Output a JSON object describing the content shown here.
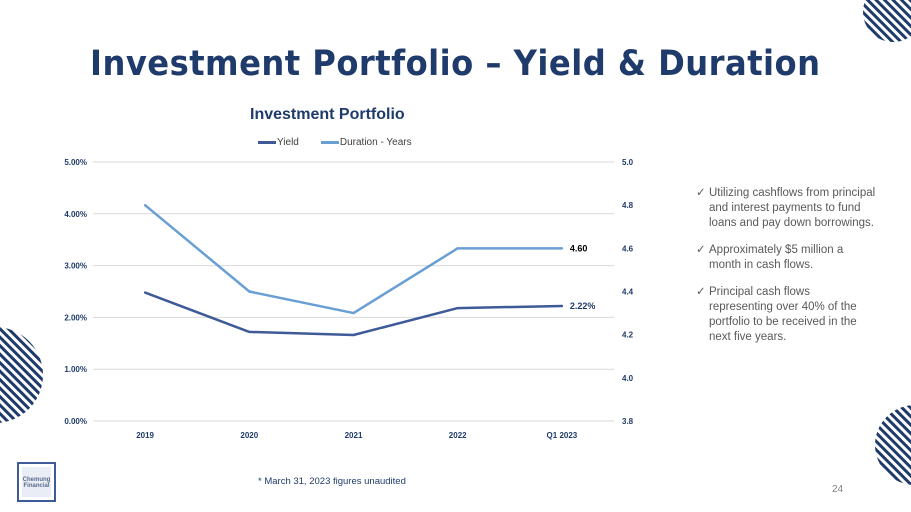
{
  "slide": {
    "title": "Investment Portfolio – Yield & Duration",
    "footnote": "* March 31, 2023  figures unaudited",
    "page_number": "24",
    "logo_text": "Chemung Financial Corporation",
    "bullets": [
      "Utilizing cashflows from principal and interest payments to fund loans and pay down borrowings.",
      "Approximately $5 million a month in cash flows.",
      "Principal cash flows representing over 40% of the portfolio to be received in the next five years."
    ],
    "bullet_icon": "checkmark-icon"
  },
  "chart_data": {
    "type": "line",
    "title": "Investment Portfolio",
    "categories": [
      "2019",
      "2020",
      "2021",
      "2022",
      "Q1 2023"
    ],
    "series": [
      {
        "name": "Yield",
        "axis": "left",
        "color": "#3f5a99",
        "values": [
          2.48,
          1.72,
          1.66,
          2.18,
          2.22
        ],
        "end_label": "2.22%"
      },
      {
        "name": "Duration - Years",
        "axis": "right",
        "color": "#6a9fd4",
        "values": [
          4.8,
          4.4,
          4.3,
          4.6,
          4.6
        ],
        "end_label": "4.60"
      }
    ],
    "left_axis": {
      "min": 0,
      "max": 5,
      "ticks": [
        "0.00%",
        "1.00%",
        "2.00%",
        "3.00%",
        "4.00%",
        "5.00%"
      ]
    },
    "right_axis": {
      "min": 3.8,
      "max": 5.0,
      "ticks": [
        "3.8",
        "4.0",
        "4.2",
        "4.4",
        "4.6",
        "4.8",
        "5.0"
      ]
    },
    "grid": true,
    "legend": "top"
  }
}
